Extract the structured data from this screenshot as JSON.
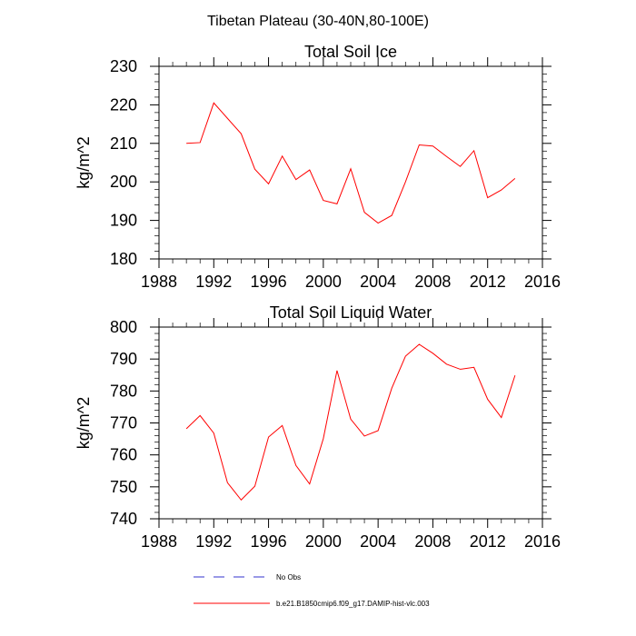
{
  "title": "Tibetan Plateau (30-40N,80-100E)",
  "colors": {
    "model_line": "#ff0000",
    "obs_line": "#3333cc",
    "axes": "#000000"
  },
  "legend": {
    "placement": "bottom",
    "items": [
      {
        "label": "No Obs",
        "style": "dashed",
        "color": "#3333cc"
      },
      {
        "label": "b.e21.B1850cmip6.f09_g17.DAMIP-hist-vlc.003",
        "style": "solid",
        "color": "#ff0000"
      }
    ]
  },
  "chart_data": [
    {
      "type": "line",
      "title": "Total Soil Ice",
      "xlabel": "",
      "ylabel": "kg/m^2",
      "xlim": [
        1988,
        2016
      ],
      "ylim": [
        180,
        230
      ],
      "xticks": [
        1988,
        1992,
        1996,
        2000,
        2004,
        2008,
        2012,
        2016
      ],
      "yticks": [
        180,
        190,
        200,
        210,
        220,
        230
      ],
      "xtick_labels": [
        "1988",
        "1992",
        "1996",
        "2000",
        "2004",
        "2008",
        "2012",
        "2016"
      ],
      "ytick_labels": [
        "180",
        "190",
        "200",
        "210",
        "220",
        "230"
      ],
      "grid": false,
      "x": [
        1990,
        1991,
        1992,
        1993,
        1994,
        1995,
        1996,
        1997,
        1998,
        1999,
        2000,
        2001,
        2002,
        2003,
        2004,
        2005,
        2006,
        2007,
        2008,
        2009,
        2010,
        2011,
        2012,
        2013,
        2014
      ],
      "series": [
        {
          "name": "b.e21.B1850cmip6.f09_g17.DAMIP-hist-vlc.003",
          "color": "#ff0000",
          "values": [
            210.0,
            210.2,
            220.5,
            216.5,
            212.5,
            203.3,
            199.5,
            206.7,
            200.6,
            203.1,
            195.2,
            194.3,
            203.4,
            192.1,
            189.3,
            191.3,
            200.0,
            209.6,
            209.3,
            206.6,
            204.0,
            208.1,
            195.9,
            197.9,
            200.9
          ]
        }
      ]
    },
    {
      "type": "line",
      "title": "Total Soil Liquid Water",
      "xlabel": "",
      "ylabel": "kg/m^2",
      "xlim": [
        1988,
        2016
      ],
      "ylim": [
        740,
        800
      ],
      "xticks": [
        1988,
        1992,
        1996,
        2000,
        2004,
        2008,
        2012,
        2016
      ],
      "yticks": [
        740,
        750,
        760,
        770,
        780,
        790,
        800
      ],
      "xtick_labels": [
        "1988",
        "1992",
        "1996",
        "2000",
        "2004",
        "2008",
        "2012",
        "2016"
      ],
      "ytick_labels": [
        "740",
        "750",
        "760",
        "770",
        "780",
        "790",
        "800"
      ],
      "grid": false,
      "x": [
        1990,
        1991,
        1992,
        1993,
        1994,
        1995,
        1996,
        1997,
        1998,
        1999,
        2000,
        2001,
        2002,
        2003,
        2004,
        2005,
        2006,
        2007,
        2008,
        2009,
        2010,
        2011,
        2012,
        2013,
        2014
      ],
      "series": [
        {
          "name": "b.e21.B1850cmip6.f09_g17.DAMIP-hist-vlc.003",
          "color": "#ff0000",
          "values": [
            768.2,
            772.3,
            766.8,
            751.3,
            745.9,
            750.2,
            765.6,
            769.2,
            756.7,
            750.9,
            765.1,
            786.4,
            771.2,
            765.9,
            767.6,
            780.9,
            790.9,
            794.6,
            791.8,
            788.4,
            786.8,
            787.4,
            777.4,
            771.7,
            784.9
          ]
        }
      ]
    }
  ]
}
